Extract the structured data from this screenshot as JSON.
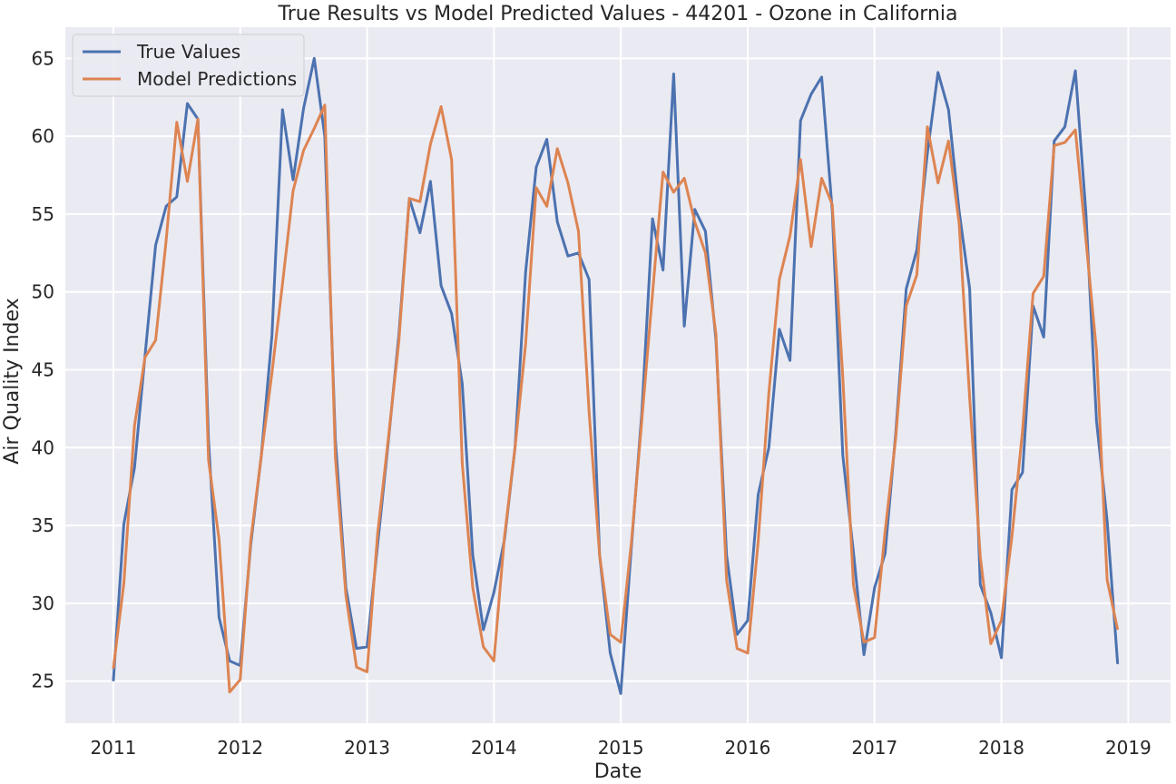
{
  "chart_data": {
    "type": "line",
    "title": "True Results vs Model Predicted Values - 44201 - Ozone in California",
    "xlabel": "Date",
    "ylabel": "Air Quality Index",
    "xlim": [
      "2010-08-15",
      "2019-05-01"
    ],
    "ylim": [
      22.3,
      67
    ],
    "x_ticks": [
      "2011",
      "2012",
      "2013",
      "2014",
      "2015",
      "2016",
      "2017",
      "2018",
      "2019"
    ],
    "y_ticks": [
      25,
      30,
      35,
      40,
      45,
      50,
      55,
      60,
      65
    ],
    "grid": true,
    "legend_position": "top-left",
    "x": [
      "2011-01",
      "2011-02",
      "2011-03",
      "2011-04",
      "2011-05",
      "2011-06",
      "2011-07",
      "2011-08",
      "2011-09",
      "2011-10",
      "2011-11",
      "2011-12",
      "2012-01",
      "2012-02",
      "2012-03",
      "2012-04",
      "2012-05",
      "2012-06",
      "2012-07",
      "2012-08",
      "2012-09",
      "2012-10",
      "2012-11",
      "2012-12",
      "2013-01",
      "2013-02",
      "2013-03",
      "2013-04",
      "2013-05",
      "2013-06",
      "2013-07",
      "2013-08",
      "2013-09",
      "2013-10",
      "2013-11",
      "2013-12",
      "2014-01",
      "2014-02",
      "2014-03",
      "2014-04",
      "2014-05",
      "2014-06",
      "2014-07",
      "2014-08",
      "2014-09",
      "2014-10",
      "2014-11",
      "2014-12",
      "2015-01",
      "2015-02",
      "2015-03",
      "2015-04",
      "2015-05",
      "2015-06",
      "2015-07",
      "2015-08",
      "2015-09",
      "2015-10",
      "2015-11",
      "2015-12",
      "2016-01",
      "2016-02",
      "2016-03",
      "2016-04",
      "2016-05",
      "2016-06",
      "2016-07",
      "2016-08",
      "2016-09",
      "2016-10",
      "2016-11",
      "2016-12",
      "2017-01",
      "2017-02",
      "2017-03",
      "2017-04",
      "2017-05",
      "2017-06",
      "2017-07",
      "2017-08",
      "2017-09",
      "2017-10",
      "2017-11",
      "2017-12",
      "2018-01",
      "2018-02",
      "2018-03",
      "2018-04",
      "2018-05",
      "2018-06",
      "2018-07",
      "2018-08",
      "2018-09",
      "2018-10",
      "2018-11",
      "2018-12"
    ],
    "series": [
      {
        "name": "True Values",
        "color": "#4c72b0",
        "values": [
          25.0,
          35.1,
          38.7,
          45.9,
          53.0,
          55.5,
          56.1,
          62.1,
          61.1,
          40.5,
          29.1,
          26.3,
          26.0,
          33.8,
          39.5,
          47.2,
          61.7,
          57.2,
          61.8,
          65.0,
          60.0,
          40.5,
          31.0,
          27.1,
          27.2,
          33.8,
          40.3,
          47.2,
          56.0,
          53.8,
          57.1,
          50.4,
          48.6,
          44.1,
          33.1,
          28.3,
          30.7,
          34.1,
          40.0,
          51.3,
          58.0,
          59.8,
          54.5,
          52.3,
          52.5,
          50.8,
          33.1,
          26.8,
          24.2,
          33.6,
          42.3,
          54.7,
          51.4,
          64.0,
          47.8,
          55.3,
          53.9,
          46.9,
          33.1,
          28.0,
          28.9,
          37.0,
          40.0,
          47.6,
          45.6,
          61.0,
          62.7,
          63.8,
          55.2,
          39.5,
          33.3,
          26.7,
          31.0,
          33.2,
          40.9,
          50.2,
          52.7,
          58.9,
          64.1,
          61.7,
          55.2,
          50.2,
          31.2,
          29.4,
          26.5,
          37.3,
          38.4,
          49.1,
          47.1,
          59.7,
          60.6,
          64.2,
          55.0,
          41.7,
          35.3,
          26.1
        ]
      },
      {
        "name": "Model Predictions",
        "color": "#dd8452",
        "values": [
          25.8,
          31.3,
          41.4,
          45.8,
          46.9,
          53.3,
          60.9,
          57.1,
          61.1,
          39.2,
          34.1,
          24.3,
          25.1,
          34.1,
          39.5,
          44.8,
          50.5,
          56.5,
          59.1,
          60.5,
          62.0,
          39.4,
          30.5,
          25.9,
          25.6,
          34.5,
          40.5,
          46.8,
          56.0,
          55.8,
          59.5,
          61.9,
          58.5,
          39.0,
          31.0,
          27.2,
          26.3,
          34.3,
          40.0,
          46.7,
          56.7,
          55.5,
          59.2,
          57.0,
          53.9,
          42.3,
          33.1,
          28.0,
          27.5,
          33.9,
          41.8,
          49.9,
          57.7,
          56.4,
          57.3,
          54.5,
          52.5,
          47.3,
          31.5,
          27.1,
          26.8,
          34.0,
          43.5,
          50.8,
          53.6,
          58.5,
          52.9,
          57.3,
          55.6,
          44.5,
          31.2,
          27.5,
          27.8,
          34.6,
          40.6,
          49.1,
          51.1,
          60.6,
          57.0,
          59.7,
          54.4,
          43.2,
          33.0,
          27.4,
          28.9,
          34.3,
          41.1,
          49.9,
          51.0,
          59.4,
          59.6,
          60.4,
          53.3,
          46.2,
          31.5,
          28.3
        ]
      }
    ]
  }
}
